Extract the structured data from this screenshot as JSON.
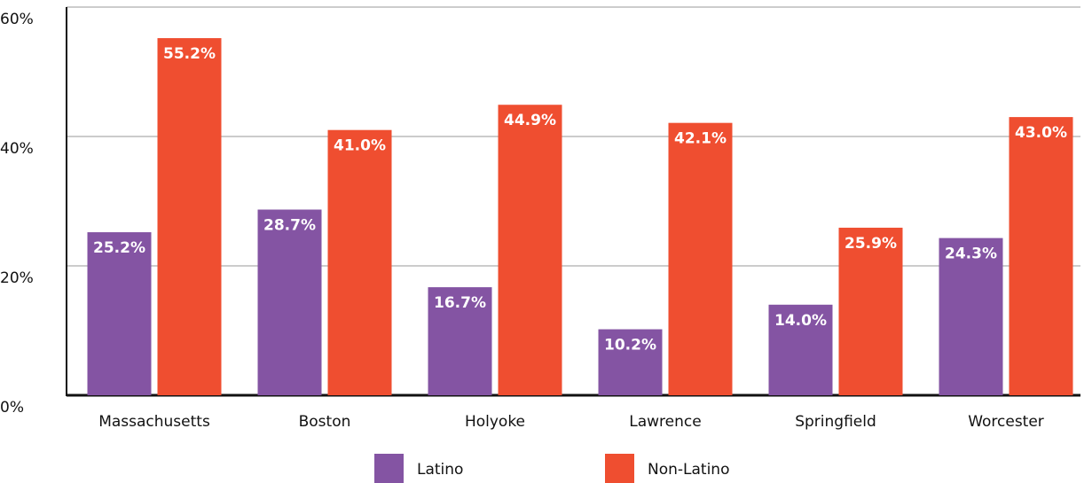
{
  "chart_data": {
    "type": "bar",
    "categories": [
      "Massachusetts",
      "Boston",
      "Holyoke",
      "Lawrence",
      "Springfield",
      "Worcester"
    ],
    "series": [
      {
        "name": "Latino",
        "color": "#8454a3",
        "values": [
          25.2,
          28.7,
          16.7,
          10.2,
          14.0,
          24.3
        ],
        "value_labels": [
          "25.2%",
          "28.7%",
          "16.7%",
          "10.2%",
          "14.0%",
          "24.3%"
        ]
      },
      {
        "name": "Non-Latino",
        "color": "#ef4e30",
        "values": [
          55.2,
          41.0,
          44.9,
          42.1,
          25.9,
          43.0
        ],
        "value_labels": [
          "55.2%",
          "41.0%",
          "44.9%",
          "42.1%",
          "25.9%",
          "43.0%"
        ]
      }
    ],
    "ylim": [
      0,
      60
    ],
    "yticks": [
      {
        "value": 0,
        "label": "0%"
      },
      {
        "value": 20,
        "label": "20%"
      },
      {
        "value": 40,
        "label": "40%"
      },
      {
        "value": 60,
        "label": "60%"
      }
    ],
    "grid": true,
    "legend": "bottom"
  }
}
